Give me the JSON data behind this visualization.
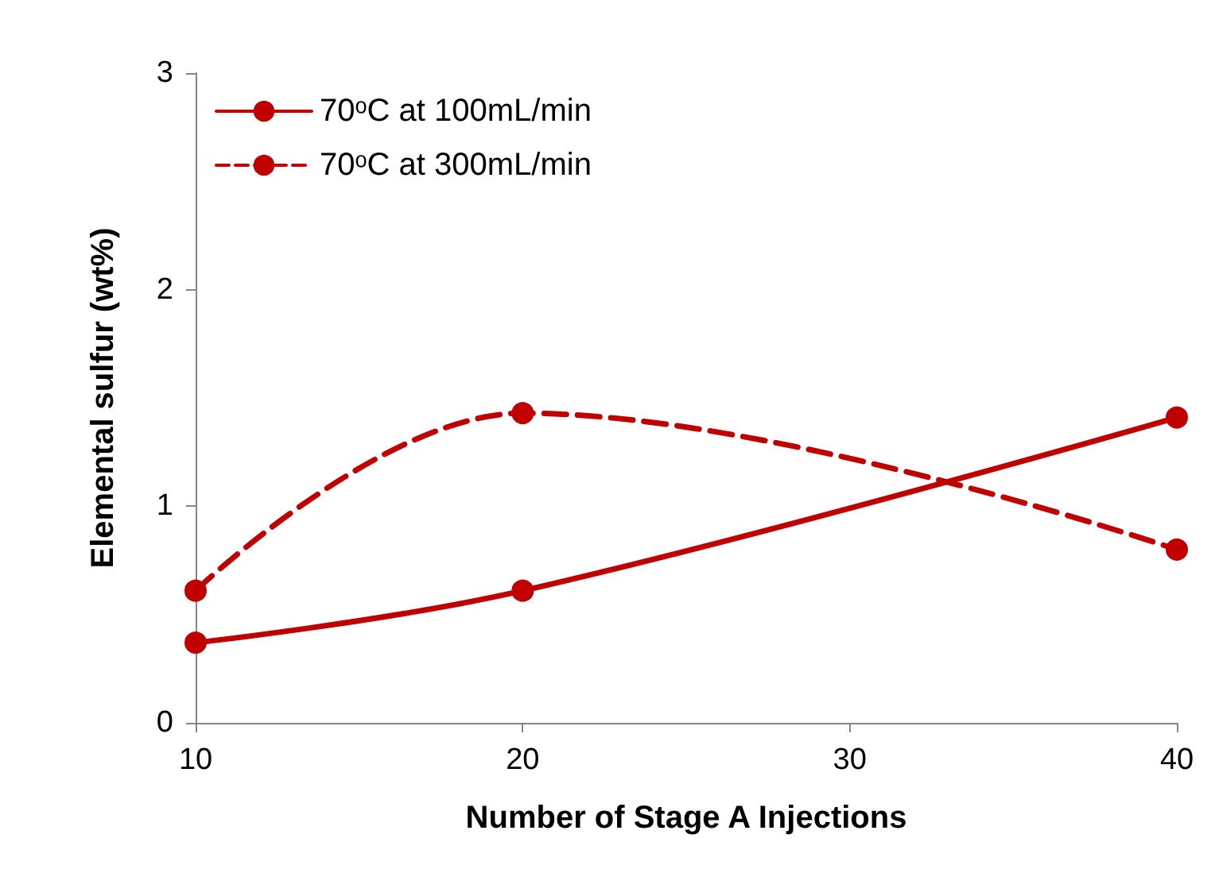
{
  "chart_data": {
    "type": "line",
    "xlabel": "Number of Stage A Injections",
    "ylabel": "Elemental sulfur (wt%)",
    "x": [
      10,
      20,
      40
    ],
    "series": [
      {
        "name": "70ᵒC at 100mL/min",
        "color": "#c00000",
        "values": [
          0.37,
          0.61,
          1.41
        ],
        "line_style": "solid"
      },
      {
        "name": "70ᵒC at 300mL/min",
        "color": "#c00000",
        "values": [
          0.61,
          1.43,
          0.8
        ],
        "line_style": "dashed"
      }
    ],
    "xlim": [
      10,
      40
    ],
    "xticks": [
      10,
      20,
      30,
      40
    ],
    "ylim": [
      0,
      3
    ],
    "yticks": [
      0,
      1,
      2,
      3
    ],
    "grid": false,
    "legend": "top left",
    "marker": "circle"
  }
}
